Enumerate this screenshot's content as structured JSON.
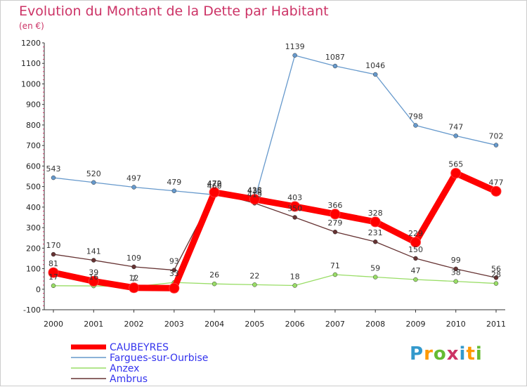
{
  "title": "Evolution du Montant de la Dette par Habitant",
  "subtitle": "(en €)",
  "logo": {
    "letters": [
      "P",
      "r",
      "o",
      "x",
      "i",
      "t",
      "i"
    ],
    "colors": [
      "#3399cc",
      "#ff9900",
      "#66bb33",
      "#cc3366",
      "#3399cc",
      "#ff9900",
      "#66bb33"
    ]
  },
  "chart_data": {
    "type": "line",
    "title": "Evolution du Montant de la Dette par Habitant",
    "subtitle": "(en €)",
    "x": [
      "2000",
      "2001",
      "2002",
      "2003",
      "2004",
      "2005",
      "2006",
      "2007",
      "2008",
      "2009",
      "2010",
      "2011"
    ],
    "ylim": [
      -100,
      1200
    ],
    "yticks": [
      -100,
      0,
      100,
      200,
      300,
      400,
      500,
      600,
      700,
      800,
      900,
      1000,
      1100,
      1200
    ],
    "grid": false,
    "legend_position": "bottom-left",
    "series": [
      {
        "name": "CAUBEYRES",
        "color": "#ff0000",
        "values": [
          81,
          39,
          7,
          5,
          472,
          438,
          403,
          366,
          328,
          229,
          565,
          477
        ],
        "labels": [
          "81",
          "39",
          "7",
          "",
          "472",
          "438",
          "403",
          "366",
          "328",
          "229",
          "565",
          "477"
        ]
      },
      {
        "name": "Fargues-sur-Ourbise",
        "color": "#6699cc",
        "values": [
          543,
          520,
          497,
          479,
          460,
          435,
          1139,
          1087,
          1046,
          798,
          747,
          702
        ],
        "labels": [
          "543",
          "520",
          "497",
          "479",
          "460",
          "435",
          "1139",
          "1087",
          "1046",
          "798",
          "747",
          "702"
        ]
      },
      {
        "name": "Anzex",
        "color": "#99dd66",
        "values": [
          17,
          16,
          12,
          33,
          26,
          22,
          18,
          71,
          59,
          47,
          38,
          28
        ],
        "labels": [
          "17",
          "16",
          "12",
          "33",
          "26",
          "22",
          "18",
          "71",
          "59",
          "47",
          "38",
          "28"
        ]
      },
      {
        "name": "Ambrus",
        "color": "#663333",
        "values": [
          170,
          141,
          109,
          93,
          470,
          419,
          350,
          279,
          231,
          150,
          99,
          56
        ],
        "labels": [
          "170",
          "141",
          "109",
          "93",
          "470",
          "419",
          "350",
          "279",
          "231",
          "150",
          "99",
          "56"
        ]
      }
    ]
  }
}
